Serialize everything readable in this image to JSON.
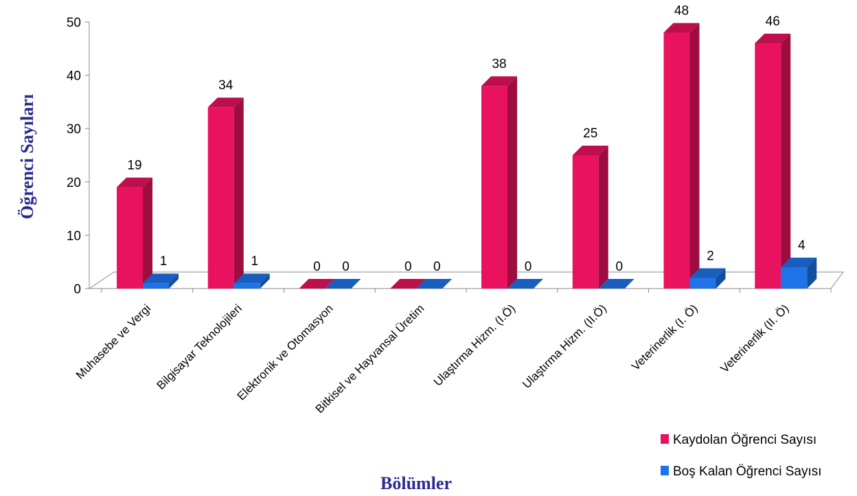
{
  "chart_data": {
    "type": "bar",
    "subtype": "3d-clustered-column",
    "title": "",
    "xlabel": "Bölümler",
    "ylabel": "Öğrenci Sayıları",
    "ylim": [
      0,
      50
    ],
    "yticks": [
      0,
      10,
      20,
      30,
      40,
      50
    ],
    "grid": false,
    "legend_position": "bottom-right",
    "categories": [
      "Muhasebe ve Vergi",
      "Bilgisayar Teknolojileri",
      "Elektronik ve Otomasyon",
      "Bitkisel ve Hayvansal Üretim",
      "Ulaştırma Hizm. (I.Ö)",
      "Ulaştırma Hizm. (II.Ö)",
      "Veterinerlik (I. Ö)",
      "Veterinerlik (II. Ö)"
    ],
    "series": [
      {
        "name": "Kaydolan Öğrenci Sayısı",
        "color": "#E8125E",
        "values": [
          19,
          34,
          0,
          0,
          38,
          25,
          48,
          46
        ]
      },
      {
        "name": "Boş Kalan Öğrenci Sayısı",
        "color": "#1E73E8",
        "values": [
          1,
          1,
          0,
          0,
          0,
          0,
          2,
          4
        ]
      }
    ]
  }
}
